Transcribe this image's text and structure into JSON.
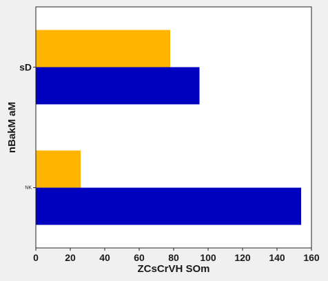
{
  "chart_data": {
    "type": "bar",
    "orientation": "horizontal",
    "categories": [
      "NK",
      "sD"
    ],
    "series": [
      {
        "values": [
          154,
          95
        ],
        "color": "#0000bf"
      },
      {
        "values": [
          26,
          78
        ],
        "color": "#ffb400"
      }
    ],
    "xlabel": "ZCsCrVH SOm",
    "ylabel": "nBakM aM",
    "xlim": [
      0,
      160
    ],
    "xticks": [
      0,
      20,
      40,
      60,
      80,
      100,
      120,
      140,
      160
    ],
    "grid": false,
    "legend": "none"
  }
}
